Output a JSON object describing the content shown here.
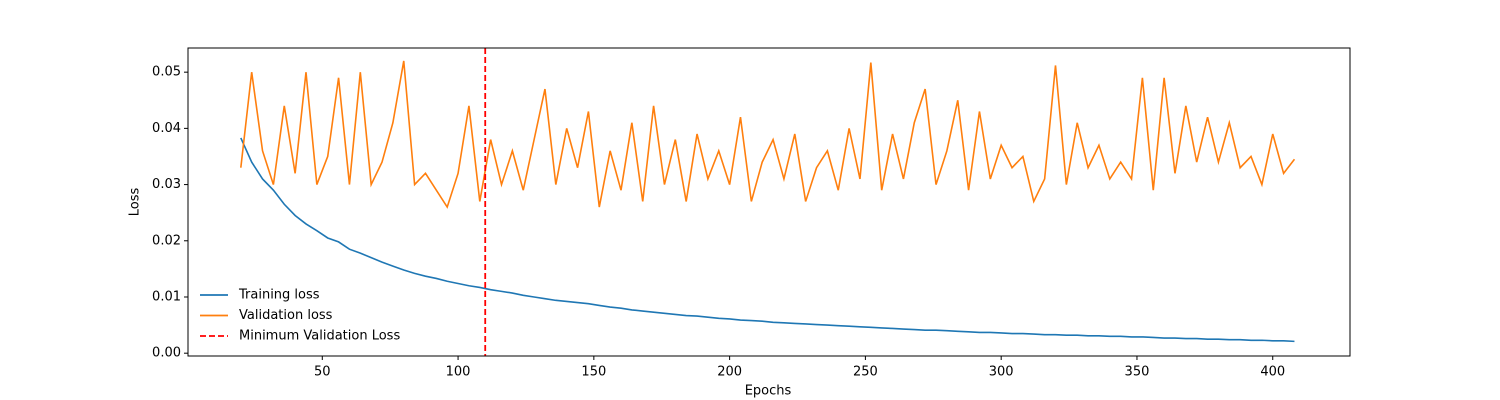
{
  "chart_data": {
    "type": "line",
    "xlabel": "Epochs",
    "ylabel": "Loss",
    "x": [
      20,
      24,
      28,
      32,
      36,
      40,
      44,
      48,
      52,
      56,
      60,
      64,
      68,
      72,
      76,
      80,
      84,
      88,
      92,
      96,
      100,
      104,
      108,
      112,
      116,
      120,
      124,
      128,
      132,
      136,
      140,
      144,
      148,
      152,
      156,
      160,
      164,
      168,
      172,
      176,
      180,
      184,
      188,
      192,
      196,
      200,
      204,
      208,
      212,
      216,
      220,
      224,
      228,
      232,
      236,
      240,
      244,
      248,
      252,
      256,
      260,
      264,
      268,
      272,
      276,
      280,
      284,
      288,
      292,
      296,
      300,
      304,
      308,
      312,
      316,
      320,
      324,
      328,
      332,
      336,
      340,
      344,
      348,
      352,
      356,
      360,
      364,
      368,
      372,
      376,
      380,
      384,
      388,
      392,
      396,
      400,
      404,
      408
    ],
    "series": [
      {
        "name": "Training loss",
        "color": "#1f77b4",
        "values": [
          0.0383,
          0.034,
          0.031,
          0.029,
          0.0265,
          0.0245,
          0.023,
          0.0218,
          0.0205,
          0.0198,
          0.0185,
          0.0178,
          0.017,
          0.0162,
          0.0155,
          0.0148,
          0.0142,
          0.0137,
          0.0133,
          0.0128,
          0.0124,
          0.012,
          0.0117,
          0.0113,
          0.011,
          0.0107,
          0.0103,
          0.01,
          0.0097,
          0.0094,
          0.0092,
          0.009,
          0.0088,
          0.0085,
          0.0082,
          0.008,
          0.0077,
          0.0075,
          0.0073,
          0.0071,
          0.0069,
          0.0067,
          0.0066,
          0.0064,
          0.0062,
          0.0061,
          0.0059,
          0.0058,
          0.0057,
          0.0055,
          0.0054,
          0.0053,
          0.0052,
          0.0051,
          0.005,
          0.0049,
          0.0048,
          0.0047,
          0.0046,
          0.0045,
          0.0044,
          0.0043,
          0.0042,
          0.0041,
          0.0041,
          0.004,
          0.0039,
          0.0038,
          0.0037,
          0.0037,
          0.0036,
          0.0035,
          0.0035,
          0.0034,
          0.0033,
          0.0033,
          0.0032,
          0.0032,
          0.0031,
          0.0031,
          0.003,
          0.003,
          0.0029,
          0.0029,
          0.0028,
          0.0027,
          0.0027,
          0.0026,
          0.0026,
          0.0025,
          0.0025,
          0.0024,
          0.0024,
          0.0023,
          0.0023,
          0.0022,
          0.0022,
          0.0021
        ]
      },
      {
        "name": "Validation loss",
        "color": "#ff7f0e",
        "values": [
          0.033,
          0.05,
          0.036,
          0.03,
          0.044,
          0.032,
          0.05,
          0.03,
          0.035,
          0.049,
          0.03,
          0.05,
          0.03,
          0.034,
          0.041,
          0.052,
          0.03,
          0.032,
          0.029,
          0.026,
          0.032,
          0.044,
          0.027,
          0.038,
          0.03,
          0.036,
          0.029,
          0.038,
          0.047,
          0.03,
          0.04,
          0.033,
          0.043,
          0.026,
          0.036,
          0.029,
          0.041,
          0.027,
          0.044,
          0.03,
          0.038,
          0.027,
          0.039,
          0.031,
          0.036,
          0.03,
          0.042,
          0.027,
          0.034,
          0.038,
          0.031,
          0.039,
          0.027,
          0.033,
          0.036,
          0.029,
          0.04,
          0.031,
          0.0517,
          0.029,
          0.039,
          0.031,
          0.041,
          0.047,
          0.03,
          0.036,
          0.045,
          0.029,
          0.043,
          0.031,
          0.037,
          0.033,
          0.035,
          0.027,
          0.031,
          0.0512,
          0.03,
          0.041,
          0.033,
          0.037,
          0.031,
          0.034,
          0.031,
          0.049,
          0.029,
          0.049,
          0.032,
          0.044,
          0.034,
          0.042,
          0.034,
          0.041,
          0.033,
          0.035,
          0.03,
          0.039,
          0.032,
          0.0345
        ]
      }
    ],
    "vline": {
      "x": 110,
      "name": "Minimum Validation Loss",
      "color": "red"
    },
    "xlim": [
      0.55,
      428.45
    ],
    "xticks": [
      50,
      100,
      150,
      200,
      250,
      300,
      350,
      400
    ],
    "ylim": [
      -0.0005,
      0.0543
    ],
    "yticks": [
      {
        "value": 0,
        "label": "0.00"
      },
      {
        "value": 0.01,
        "label": "0.01"
      },
      {
        "value": 0.02,
        "label": "0.02"
      },
      {
        "value": 0.03,
        "label": "0.03"
      },
      {
        "value": 0.04,
        "label": "0.04"
      },
      {
        "value": 0.05,
        "label": "0.05"
      }
    ],
    "legend": "lower left"
  }
}
